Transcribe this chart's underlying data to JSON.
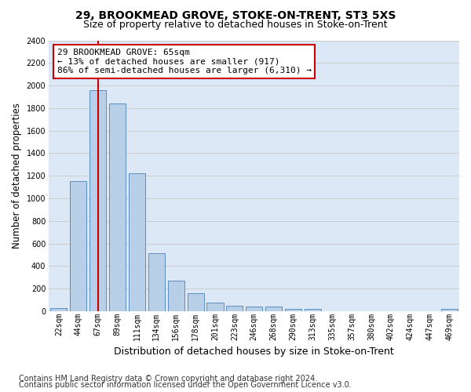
{
  "title": "29, BROOKMEAD GROVE, STOKE-ON-TRENT, ST3 5XS",
  "subtitle": "Size of property relative to detached houses in Stoke-on-Trent",
  "xlabel": "Distribution of detached houses by size in Stoke-on-Trent",
  "ylabel": "Number of detached properties",
  "categories": [
    "22sqm",
    "44sqm",
    "67sqm",
    "89sqm",
    "111sqm",
    "134sqm",
    "156sqm",
    "178sqm",
    "201sqm",
    "223sqm",
    "246sqm",
    "268sqm",
    "290sqm",
    "313sqm",
    "335sqm",
    "357sqm",
    "380sqm",
    "402sqm",
    "424sqm",
    "447sqm",
    "469sqm"
  ],
  "values": [
    30,
    1150,
    1960,
    1840,
    1220,
    515,
    270,
    160,
    80,
    50,
    45,
    40,
    20,
    20,
    0,
    0,
    0,
    0,
    0,
    0,
    20
  ],
  "bar_color": "#b8cfe8",
  "bar_edge_color": "#5b8ec4",
  "property_line_x": 2,
  "property_line_color": "#cc0000",
  "annotation_text": "29 BROOKMEAD GROVE: 65sqm\n← 13% of detached houses are smaller (917)\n86% of semi-detached houses are larger (6,310) →",
  "annotation_box_facecolor": "#ffffff",
  "annotation_box_edgecolor": "#cc0000",
  "ylim": [
    0,
    2400
  ],
  "yticks": [
    0,
    200,
    400,
    600,
    800,
    1000,
    1200,
    1400,
    1600,
    1800,
    2000,
    2200,
    2400
  ],
  "grid_color": "#cccccc",
  "background_color": "#ffffff",
  "plot_background_color": "#dce8f5",
  "footer_line1": "Contains HM Land Registry data © Crown copyright and database right 2024.",
  "footer_line2": "Contains public sector information licensed under the Open Government Licence v3.0.",
  "title_fontsize": 10,
  "subtitle_fontsize": 9,
  "ylabel_fontsize": 8.5,
  "xlabel_fontsize": 9,
  "tick_fontsize": 7,
  "footer_fontsize": 7,
  "annotation_fontsize": 8
}
